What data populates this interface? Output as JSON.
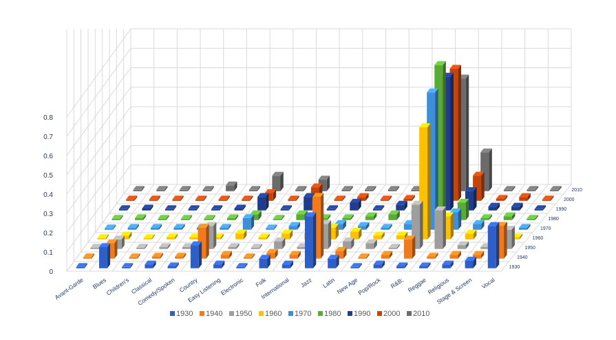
{
  "chart_data": {
    "type": "bar",
    "subtype": "3d-column",
    "title": "",
    "xlabel": "",
    "ylabel": "",
    "ylim": [
      0,
      0.8
    ],
    "y_ticks": [
      "0",
      "0.1",
      "0.2",
      "0.3",
      "0.4",
      "0.5",
      "0.6",
      "0.7",
      "0.8"
    ],
    "grid": true,
    "legend_position": "bottom",
    "categories": [
      "Avant-Garde",
      "Blues",
      "Children's",
      "Classical",
      "Comedy/Spoken",
      "Country",
      "Easy Listening",
      "Electronic",
      "Folk",
      "International",
      "Jazz",
      "Latin",
      "New Age",
      "Pop/Rock",
      "R&B;",
      "Reggae",
      "Religious",
      "Stage & Screen",
      "Vocal"
    ],
    "series": [
      {
        "name": "1930",
        "color": "#2e5fc8",
        "values": [
          0.0,
          0.11,
          0.0,
          0.02,
          0.01,
          0.12,
          0.02,
          0.0,
          0.05,
          0.02,
          0.27,
          0.05,
          0.0,
          0.02,
          0.01,
          0.01,
          0.02,
          0.04,
          0.22
        ]
      },
      {
        "name": "1940",
        "color": "#f27a1a",
        "values": [
          0.0,
          0.08,
          0.0,
          0.01,
          0.01,
          0.16,
          0.02,
          0.0,
          0.03,
          0.02,
          0.32,
          0.04,
          0.0,
          0.02,
          0.1,
          0.01,
          0.02,
          0.02,
          0.17
        ]
      },
      {
        "name": "1950",
        "color": "#9e9e9e",
        "values": [
          0.0,
          0.05,
          0.0,
          0.01,
          0.01,
          0.12,
          0.01,
          0.0,
          0.04,
          0.01,
          0.13,
          0.04,
          0.03,
          0.0,
          0.23,
          0.2,
          0.02,
          0.01,
          0.1
        ]
      },
      {
        "name": "1960",
        "color": "#ffc000",
        "values": [
          0.0,
          0.02,
          0.0,
          0.01,
          0.01,
          0.01,
          0.03,
          0.01,
          0.03,
          0.03,
          0.06,
          0.04,
          0.02,
          0.02,
          0.58,
          0.12,
          0.03,
          0.01,
          0.01
        ]
      },
      {
        "name": "1970",
        "color": "#3d8fd9",
        "values": [
          0.0,
          0.01,
          0.01,
          0.01,
          0.01,
          0.01,
          0.06,
          0.0,
          0.02,
          0.02,
          0.03,
          0.02,
          0.01,
          0.03,
          0.71,
          0.09,
          0.03,
          0.02,
          0.01
        ]
      },
      {
        "name": "1980",
        "color": "#5aaa36",
        "values": [
          0.0,
          0.01,
          0.0,
          0.0,
          0.0,
          0.01,
          0.03,
          0.0,
          0.03,
          0.01,
          0.01,
          0.02,
          0.03,
          0.05,
          0.8,
          0.09,
          0.01,
          0.02,
          0.0
        ]
      },
      {
        "name": "1990",
        "color": "#1f3d8c",
        "values": [
          0.0,
          0.01,
          0.0,
          0.0,
          0.0,
          0.01,
          0.07,
          0.0,
          0.07,
          0.0,
          0.04,
          0.0,
          0.03,
          0.04,
          0.69,
          0.1,
          0.02,
          0.02,
          0.0
        ]
      },
      {
        "name": "2000",
        "color": "#c4450c",
        "values": [
          0.0,
          0.0,
          0.0,
          0.0,
          0.0,
          0.0,
          0.04,
          0.0,
          0.07,
          0.0,
          0.02,
          0.0,
          0.01,
          0.03,
          0.68,
          0.13,
          0.01,
          0.02,
          0.0
        ]
      },
      {
        "name": "2010",
        "color": "#6b6b6b",
        "values": [
          0.0,
          0.0,
          0.0,
          0.0,
          0.03,
          0.0,
          0.08,
          0.0,
          0.06,
          0.0,
          0.0,
          0.0,
          0.0,
          0.0,
          0.58,
          0.2,
          0.0,
          0.0,
          0.0
        ]
      }
    ]
  }
}
